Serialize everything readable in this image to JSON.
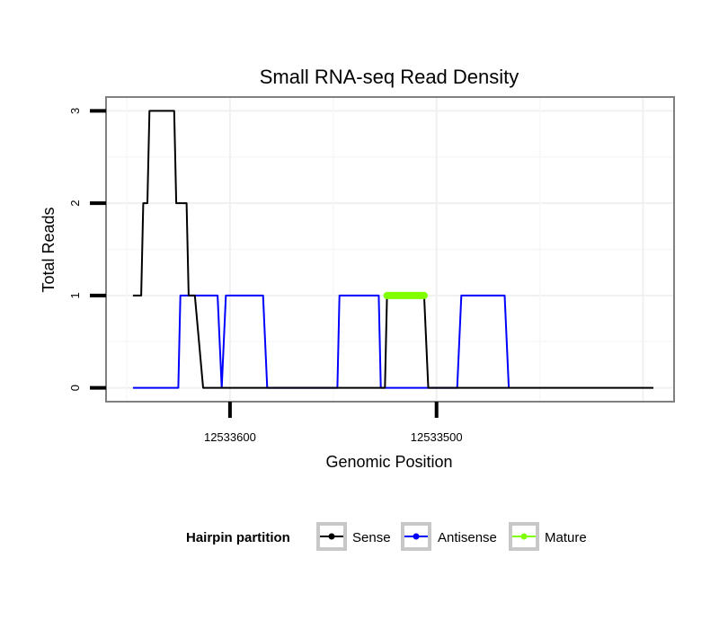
{
  "chart_data": {
    "type": "line",
    "title": "Small RNA-seq Read Density",
    "xlabel": "Genomic Position",
    "ylabel": "Total Reads",
    "x_reversed": true,
    "xlim": [
      12533660,
      12533385
    ],
    "ylim": [
      -0.15,
      3.15
    ],
    "x_ticks": [
      {
        "value": 12533600,
        "label": "12533600"
      },
      {
        "value": 12533500,
        "label": "12533500"
      }
    ],
    "y_ticks": [
      {
        "value": 0,
        "label": "0"
      },
      {
        "value": 1,
        "label": "1"
      },
      {
        "value": 2,
        "label": "2"
      },
      {
        "value": 3,
        "label": "3"
      }
    ],
    "grid": true,
    "legend": {
      "title": "Hairpin partition",
      "position": "bottom",
      "entries": [
        {
          "name": "Sense",
          "color": "#000000"
        },
        {
          "name": "Antisense",
          "color": "#0000ff"
        },
        {
          "name": "Mature",
          "color": "#7fff00"
        }
      ]
    },
    "series": [
      {
        "name": "Sense",
        "color": "#000000",
        "x": [
          12533647,
          12533643,
          12533642,
          12533640,
          12533639,
          12533627,
          12533626,
          12533621,
          12533620,
          12533617,
          12533613,
          12533525,
          12533524,
          12533506,
          12533504,
          12533395
        ],
        "y": [
          1,
          1,
          2,
          2,
          3,
          3,
          2,
          2,
          1,
          1,
          0,
          0,
          1,
          1,
          0,
          0
        ]
      },
      {
        "name": "Antisense",
        "color": "#0000ff",
        "x": [
          12533647,
          12533625,
          12533624,
          12533606,
          12533604,
          12533602,
          12533584,
          12533582,
          12533548,
          12533547,
          12533528,
          12533527,
          12533490,
          12533488,
          12533467,
          12533465
        ],
        "y": [
          0,
          0,
          1,
          1,
          0,
          1,
          1,
          0,
          0,
          1,
          1,
          0,
          0,
          1,
          1,
          0
        ]
      },
      {
        "name": "Mature",
        "color": "#7fff00",
        "x": [
          12533524,
          12533506
        ],
        "y": [
          1,
          1
        ]
      }
    ]
  }
}
